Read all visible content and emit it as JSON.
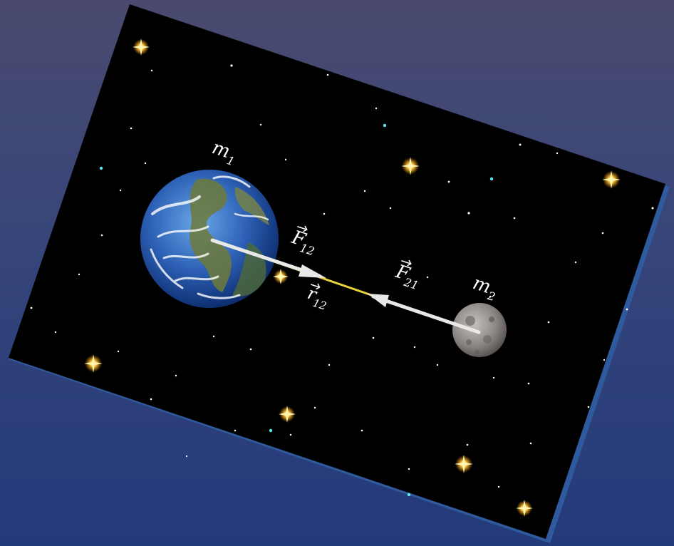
{
  "colors": {
    "background_top": "#4a4a6e",
    "background_bottom": "#233a7a",
    "frame_edge": "#2f5b9e",
    "space": "#000000",
    "vector_white": "#e8e8e8",
    "vector_yellow": "#e8d23a"
  },
  "labels": {
    "m1": "m",
    "m1_sub": "1",
    "m2": "m",
    "m2_sub": "2",
    "F12": "F",
    "F12_sub": "12",
    "F21": "F",
    "F21_sub": "21",
    "r12": "r",
    "r12_sub": "12"
  },
  "icons": {
    "earth": "earth-icon",
    "moon": "moon-icon",
    "star": "star-icon"
  }
}
